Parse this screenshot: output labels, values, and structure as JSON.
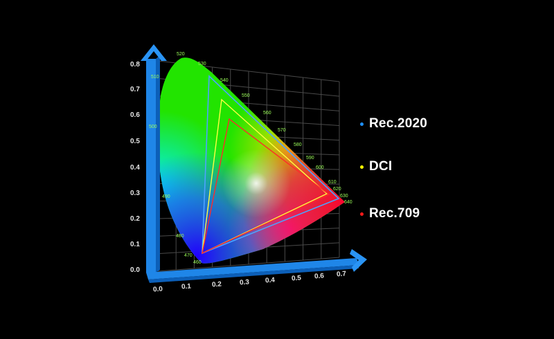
{
  "axes": {
    "y_ticks": [
      "0.0",
      "0.1",
      "0.2",
      "0.3",
      "0.4",
      "0.5",
      "0.6",
      "0.7",
      "0.8"
    ],
    "x_ticks": [
      "0.0",
      "0.1",
      "0.2",
      "0.3",
      "0.4",
      "0.5",
      "0.6",
      "0.7"
    ]
  },
  "wavelengths": [
    "460",
    "470",
    "480",
    "490",
    "500",
    "510",
    "520",
    "530",
    "540",
    "550",
    "560",
    "570",
    "580",
    "590",
    "600",
    "610",
    "620",
    "630",
    "640"
  ],
  "legend": [
    {
      "label": "Rec.2020",
      "color": "#1e90ff"
    },
    {
      "label": "DCI",
      "color": "#ffff00"
    },
    {
      "label": "Rec.709",
      "color": "#ff1a1a"
    }
  ],
  "colors": {
    "axis": "#1f86e8",
    "grid": "#4a4a4a",
    "rec2020": "#4da3ff",
    "dci": "#ffff40",
    "rec709": "#ff2a2a"
  }
}
